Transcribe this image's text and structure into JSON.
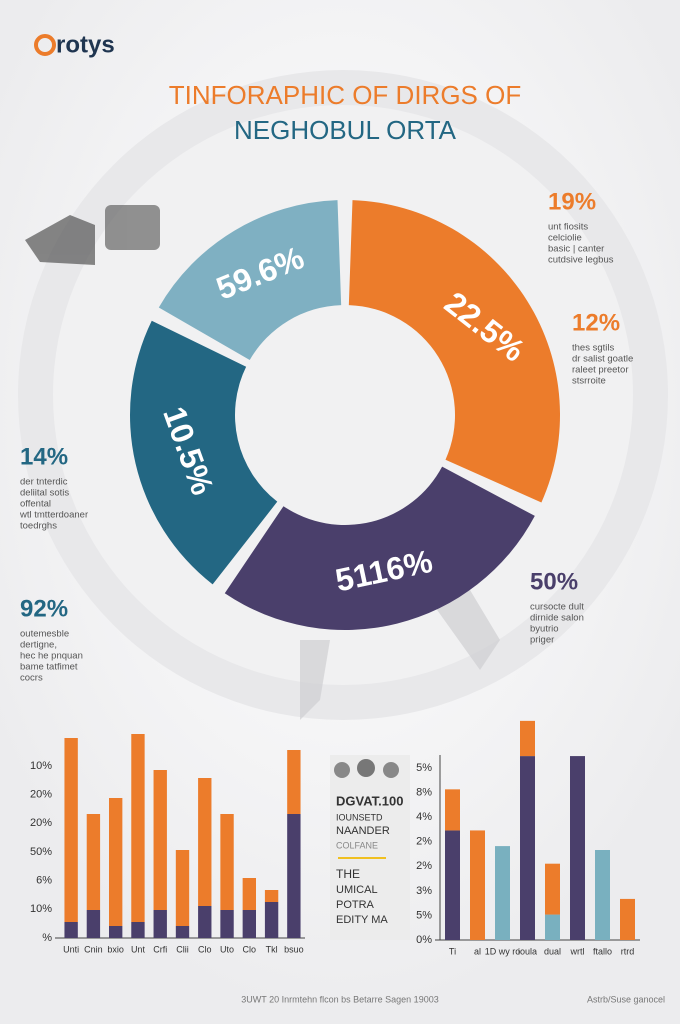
{
  "logo": "rotys",
  "title": [
    "TINFORAPHIC OF DIRGS OF",
    "NEGHOBUL ORTA"
  ],
  "donut": {
    "segments": [
      {
        "label": "59.6%",
        "color": "#7fb0c2"
      },
      {
        "label": "22.5%",
        "color": "#ec7c2b"
      },
      {
        "label": "5116%",
        "color": "#4a3f6b"
      },
      {
        "label": "10.5%",
        "color": "#236783"
      }
    ]
  },
  "notes": [
    {
      "value": "19%",
      "color": "#ec7c2b",
      "lines": [
        "unt fiosits",
        "celciolie",
        "basic | canter",
        "cutdsive legbus"
      ]
    },
    {
      "value": "12%",
      "color": "#ec7c2b",
      "lines": [
        "thes sgtils",
        "dr salist goatle",
        "raleet preetor",
        "stsrroite"
      ]
    },
    {
      "value": "14%",
      "color": "#236783",
      "lines": [
        "der tnterdic",
        "deliital sotis",
        "offental",
        "wtl tmtterdoaner",
        "toedrghs"
      ]
    },
    {
      "value": "50%",
      "color": "#4a3f6b",
      "lines": [
        "cursocte dult",
        "dirnide salon",
        "byutrio",
        "priger"
      ]
    },
    {
      "value": "92%",
      "color": "#236783",
      "lines": [
        "outemesble",
        "dertigne,",
        "hec he pnquan",
        "bame tatfimet",
        "cocrs"
      ]
    }
  ],
  "chart_data": [
    {
      "type": "bar",
      "stacked": true,
      "categories": [
        "Unti",
        "Cnin",
        "bxio",
        "Unt",
        "Crfi",
        "Clii",
        "Clo",
        "Uto",
        "Clo",
        "Tkl",
        "bsuo"
      ],
      "y_labels": [
        "10%",
        "20%",
        "20%",
        "50%",
        "6%",
        "10%",
        "%"
      ],
      "ylim": [
        0,
        110
      ],
      "series": [
        {
          "color": "#4a3f6b",
          "values": [
            8,
            14,
            6,
            8,
            14,
            6,
            16,
            14,
            14,
            18,
            62
          ]
        },
        {
          "color": "#ec7c2b",
          "values": [
            92,
            48,
            64,
            94,
            70,
            38,
            64,
            48,
            16,
            6,
            32
          ]
        }
      ]
    },
    {
      "type": "bar",
      "stacked": true,
      "categories": [
        "Ti",
        "al",
        "1D wy ro",
        "ioula",
        "dual",
        "wrtl",
        "ftallo",
        "rtrd"
      ],
      "y_labels": [
        "5%",
        "8%",
        "4%",
        "2%",
        "2%",
        "3%",
        "5%",
        "0%"
      ],
      "ylim": [
        0,
        115
      ],
      "series": [
        {
          "color": "#4a3f6b",
          "values": [
            56,
            null,
            null,
            94,
            null,
            94,
            null,
            null
          ]
        },
        {
          "color": "#79b0bf",
          "values": [
            null,
            null,
            48,
            null,
            13,
            null,
            46,
            null
          ]
        },
        {
          "color": "#ec7c2b",
          "values": [
            21,
            56,
            null,
            18,
            26,
            null,
            null,
            21
          ]
        }
      ]
    }
  ],
  "card": {
    "lines": [
      "DGVAT.100",
      "IOUNSETD",
      "NAANDER",
      "COLFANE",
      "THE",
      "UMICAL",
      "POTRA",
      "EDITY MA"
    ]
  },
  "footer": {
    "left": "3UWT 20 Inrmtehn flcon bs Betarre Sagen 19003",
    "right": "Astrb/Suse ganocel"
  }
}
